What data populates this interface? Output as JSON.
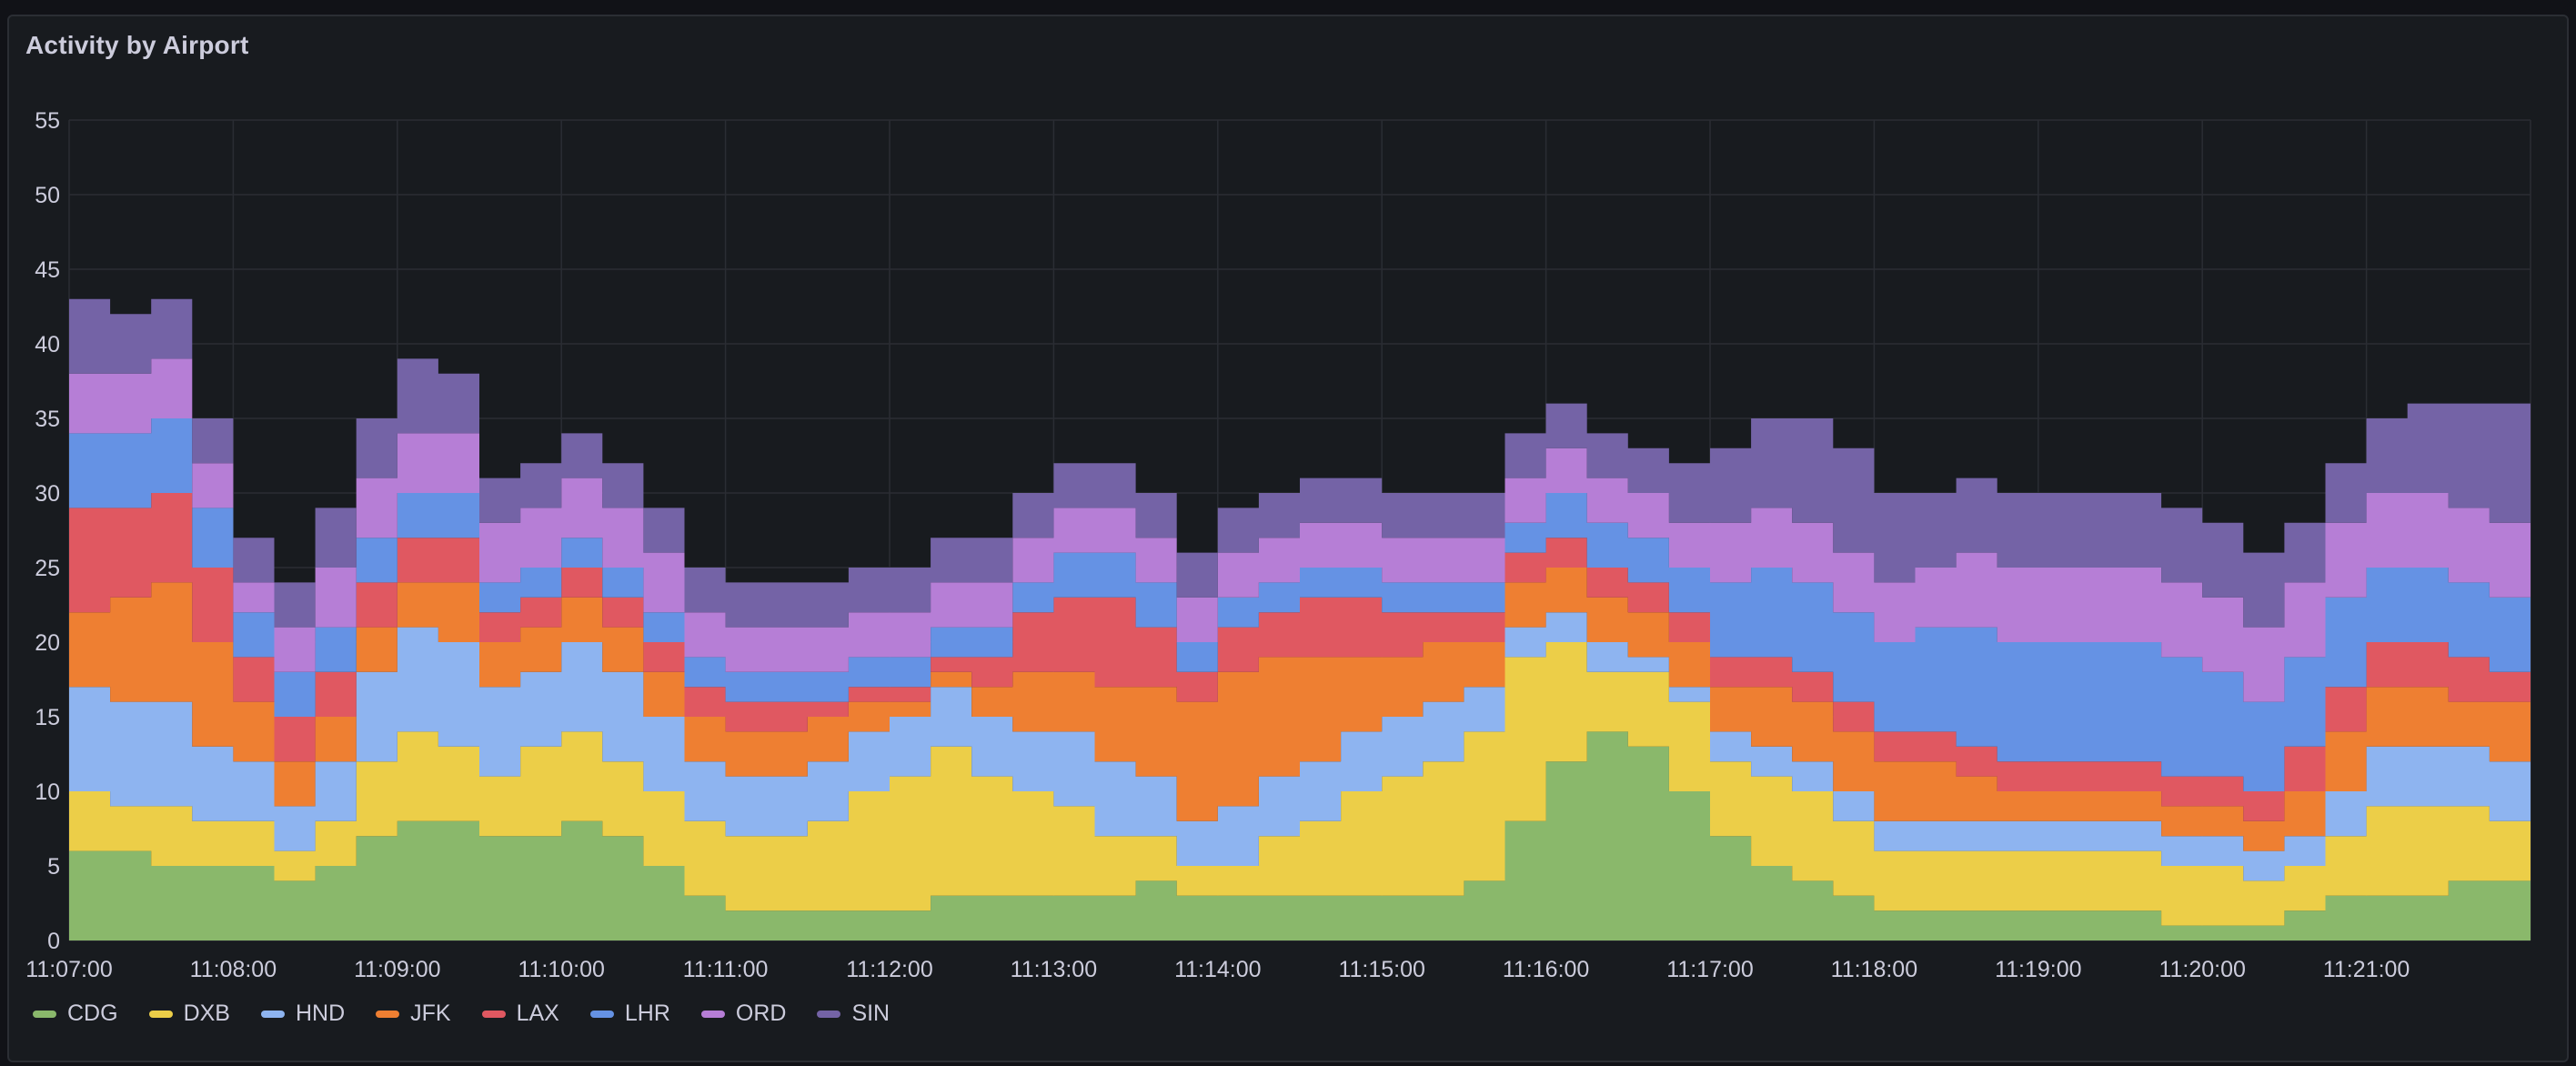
{
  "panel": {
    "title": "Activity by Airport"
  },
  "chart_data": {
    "type": "area",
    "stacked": true,
    "step": true,
    "title": "Activity by Airport",
    "xlabel": "",
    "ylabel": "",
    "ylim": [
      0,
      55
    ],
    "yticks": [
      0,
      5,
      10,
      15,
      20,
      25,
      30,
      35,
      40,
      45,
      50,
      55
    ],
    "xticks": [
      "11:07:00",
      "11:08:00",
      "11:09:00",
      "11:10:00",
      "11:11:00",
      "11:12:00",
      "11:13:00",
      "11:14:00",
      "11:15:00",
      "11:16:00",
      "11:17:00",
      "11:18:00",
      "11:19:00",
      "11:20:00",
      "11:21:00"
    ],
    "grid": true,
    "legend_position": "bottom-left",
    "x_interval_seconds": 15,
    "x": [
      "11:07:00",
      "11:07:15",
      "11:07:30",
      "11:07:45",
      "11:08:00",
      "11:08:15",
      "11:08:30",
      "11:08:45",
      "11:09:00",
      "11:09:15",
      "11:09:30",
      "11:09:45",
      "11:10:00",
      "11:10:15",
      "11:10:30",
      "11:10:45",
      "11:11:00",
      "11:11:15",
      "11:11:30",
      "11:11:45",
      "11:12:00",
      "11:12:15",
      "11:12:30",
      "11:12:45",
      "11:13:00",
      "11:13:15",
      "11:13:30",
      "11:13:45",
      "11:14:00",
      "11:14:15",
      "11:14:30",
      "11:14:45",
      "11:15:00",
      "11:15:15",
      "11:15:30",
      "11:15:45",
      "11:16:00",
      "11:16:15",
      "11:16:30",
      "11:16:45",
      "11:17:00",
      "11:17:15",
      "11:17:30",
      "11:17:45",
      "11:18:00",
      "11:18:15",
      "11:18:30",
      "11:18:45",
      "11:19:00",
      "11:19:15",
      "11:19:30",
      "11:19:45",
      "11:20:00",
      "11:20:15",
      "11:20:30",
      "11:20:45",
      "11:21:00",
      "11:21:15",
      "11:21:30",
      "11:21:45"
    ],
    "series": [
      {
        "name": "CDG",
        "color": "#8ab86b",
        "values": [
          6,
          6,
          5,
          5,
          5,
          4,
          5,
          7,
          8,
          8,
          7,
          7,
          8,
          7,
          5,
          3,
          2,
          2,
          2,
          2,
          2,
          3,
          3,
          3,
          3,
          3,
          4,
          3,
          3,
          3,
          3,
          3,
          3,
          3,
          4,
          8,
          12,
          14,
          13,
          10,
          7,
          5,
          4,
          3,
          2,
          2,
          2,
          2,
          2,
          2,
          2,
          1,
          1,
          1,
          2,
          3,
          3,
          3,
          4,
          4
        ]
      },
      {
        "name": "DXB",
        "color": "#ecce48",
        "values": [
          4,
          3,
          4,
          3,
          3,
          2,
          3,
          5,
          6,
          5,
          4,
          6,
          6,
          5,
          5,
          5,
          5,
          5,
          6,
          8,
          9,
          10,
          8,
          7,
          6,
          4,
          3,
          2,
          2,
          4,
          5,
          7,
          8,
          9,
          10,
          11,
          8,
          4,
          5,
          6,
          5,
          6,
          6,
          5,
          4,
          4,
          4,
          4,
          4,
          4,
          4,
          4,
          4,
          3,
          3,
          4,
          6,
          6,
          5,
          4
        ]
      },
      {
        "name": "HND",
        "color": "#8eb4f0",
        "values": [
          7,
          7,
          7,
          5,
          4,
          3,
          4,
          6,
          7,
          7,
          6,
          5,
          6,
          6,
          5,
          4,
          4,
          4,
          4,
          4,
          4,
          4,
          4,
          4,
          5,
          5,
          4,
          3,
          4,
          4,
          4,
          4,
          4,
          4,
          3,
          2,
          2,
          2,
          1,
          1,
          2,
          2,
          2,
          2,
          2,
          2,
          2,
          2,
          2,
          2,
          2,
          2,
          2,
          2,
          2,
          3,
          4,
          4,
          4,
          4
        ]
      },
      {
        "name": "JFK",
        "color": "#ee7f32",
        "values": [
          5,
          7,
          8,
          7,
          4,
          3,
          3,
          3,
          3,
          4,
          3,
          3,
          3,
          3,
          3,
          3,
          3,
          3,
          3,
          2,
          1,
          1,
          2,
          4,
          4,
          5,
          6,
          8,
          9,
          8,
          7,
          5,
          4,
          4,
          3,
          3,
          3,
          3,
          3,
          3,
          3,
          4,
          4,
          4,
          4,
          4,
          3,
          2,
          2,
          2,
          2,
          2,
          2,
          2,
          3,
          4,
          4,
          4,
          3,
          4
        ]
      },
      {
        "name": "LAX",
        "color": "#e05861",
        "values": [
          7,
          6,
          6,
          5,
          3,
          3,
          3,
          3,
          3,
          3,
          2,
          2,
          2,
          2,
          2,
          2,
          2,
          2,
          1,
          1,
          1,
          1,
          2,
          4,
          5,
          6,
          4,
          2,
          3,
          3,
          4,
          4,
          3,
          2,
          2,
          2,
          2,
          2,
          2,
          2,
          2,
          2,
          2,
          2,
          2,
          2,
          2,
          2,
          2,
          2,
          2,
          2,
          2,
          2,
          3,
          3,
          3,
          3,
          3,
          2
        ]
      },
      {
        "name": "LHR",
        "color": "#6592e4",
        "values": [
          5,
          5,
          5,
          4,
          3,
          3,
          3,
          3,
          3,
          3,
          2,
          2,
          2,
          2,
          2,
          2,
          2,
          2,
          2,
          2,
          2,
          2,
          2,
          2,
          3,
          3,
          3,
          2,
          2,
          2,
          2,
          2,
          2,
          2,
          2,
          2,
          3,
          3,
          3,
          3,
          5,
          6,
          6,
          6,
          6,
          7,
          8,
          8,
          8,
          8,
          8,
          8,
          7,
          6,
          6,
          6,
          5,
          5,
          5,
          5
        ]
      },
      {
        "name": "ORD",
        "color": "#b67ed6",
        "values": [
          4,
          4,
          4,
          3,
          2,
          3,
          4,
          4,
          4,
          4,
          4,
          4,
          4,
          4,
          4,
          3,
          3,
          3,
          3,
          3,
          3,
          3,
          3,
          3,
          3,
          3,
          3,
          3,
          3,
          3,
          3,
          3,
          3,
          3,
          3,
          3,
          3,
          3,
          3,
          3,
          4,
          4,
          4,
          4,
          4,
          4,
          5,
          5,
          5,
          5,
          5,
          5,
          5,
          5,
          5,
          5,
          5,
          5,
          5,
          5
        ]
      },
      {
        "name": "SIN",
        "color": "#7463a6",
        "values": [
          5,
          4,
          4,
          3,
          3,
          3,
          4,
          4,
          5,
          4,
          3,
          3,
          3,
          3,
          3,
          3,
          3,
          3,
          3,
          3,
          3,
          3,
          3,
          3,
          3,
          3,
          3,
          3,
          3,
          3,
          3,
          3,
          3,
          3,
          3,
          3,
          3,
          3,
          3,
          4,
          5,
          6,
          7,
          7,
          6,
          5,
          5,
          5,
          5,
          5,
          5,
          5,
          5,
          5,
          4,
          4,
          5,
          6,
          7,
          8
        ]
      }
    ]
  }
}
